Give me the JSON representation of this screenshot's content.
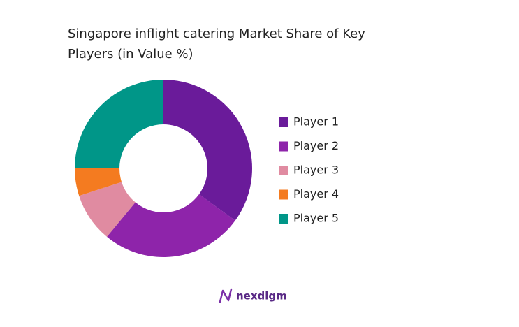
{
  "chart_data": {
    "type": "donut",
    "title": "Singapore inflight catering Market Share of Key Players (in Value %)",
    "categories": [
      "Player 1",
      "Player 2",
      "Player 3",
      "Player 4",
      "Player 5"
    ],
    "values": [
      35,
      26,
      9,
      5,
      25
    ],
    "colors": [
      "#6a1b9a",
      "#8e24aa",
      "#e08ba1",
      "#f47b20",
      "#009688"
    ],
    "legend": "right"
  },
  "brand": "nexdigm"
}
